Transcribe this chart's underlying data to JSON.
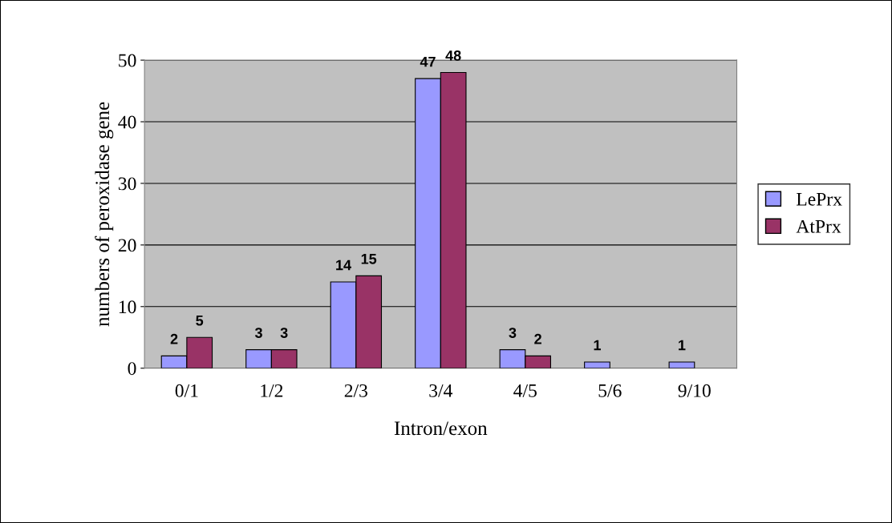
{
  "chart_data": {
    "type": "bar",
    "xlabel": "Intron/exon",
    "ylabel": "numbers of peroxidase gene",
    "categories": [
      "0/1",
      "1/2",
      "2/3",
      "3/4",
      "4/5",
      "5/6",
      "9/10"
    ],
    "series": [
      {
        "name": "LePrx",
        "color": "#9999ff",
        "values": [
          2,
          3,
          14,
          47,
          3,
          1,
          1
        ]
      },
      {
        "name": "AtPrx",
        "color": "#993366",
        "values": [
          5,
          3,
          15,
          48,
          2,
          null,
          null
        ]
      }
    ],
    "ylim": [
      0,
      50
    ],
    "yticks": [
      0,
      10,
      20,
      30,
      40,
      50
    ],
    "grid": "y",
    "legend": "right",
    "data_labels": true
  }
}
